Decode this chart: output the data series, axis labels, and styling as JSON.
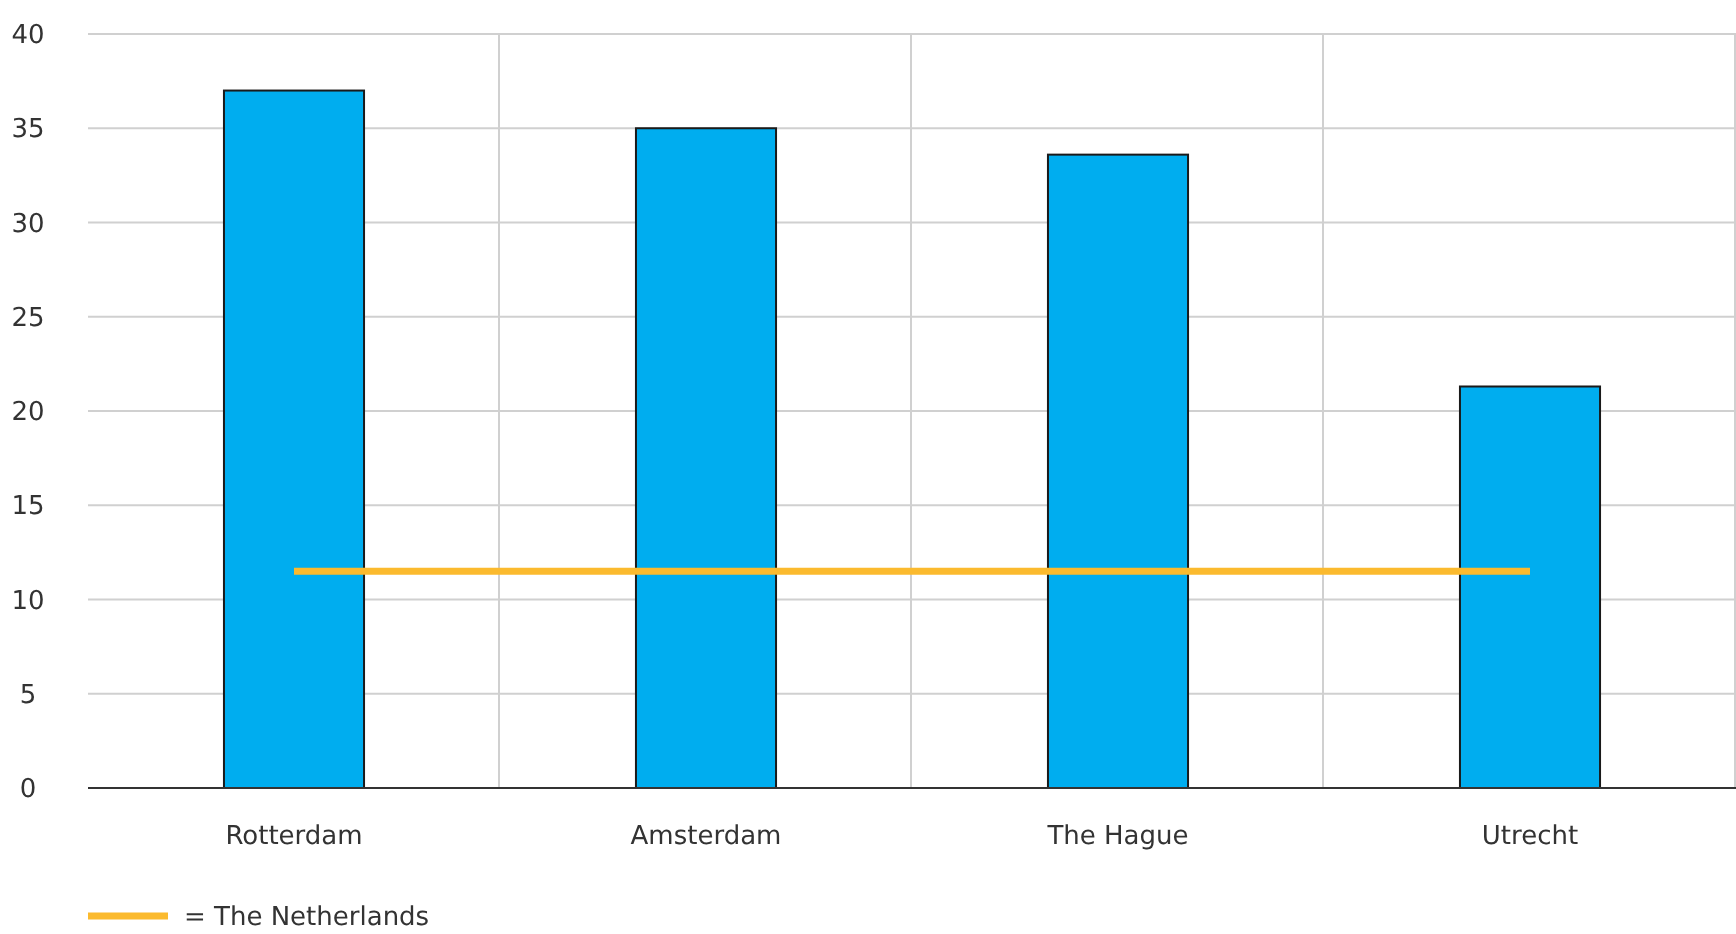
{
  "chart_data": {
    "type": "bar",
    "categories": [
      "Rotterdam",
      "Amsterdam",
      "The Hague",
      "Utrecht"
    ],
    "series": [
      {
        "color": "#00adef",
        "values": [
          37,
          35,
          33.6,
          21.3
        ]
      },
      {
        "type": "line",
        "name": "= The Netherlands",
        "color": "#fbba2e",
        "values": [
          11.5,
          11.5,
          11.5,
          11.5
        ]
      }
    ],
    "ylim": [
      0,
      40
    ],
    "yticks": [
      0,
      5,
      10,
      15,
      20,
      25,
      30,
      35,
      40
    ],
    "grid": true,
    "legend": "bottom left"
  }
}
